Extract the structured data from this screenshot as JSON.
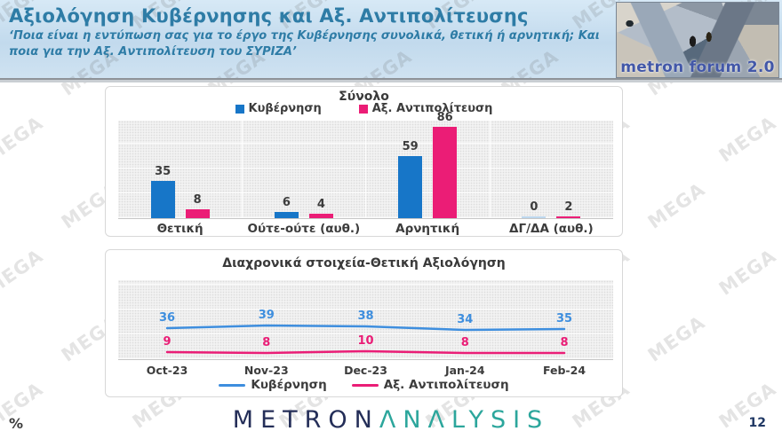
{
  "header": {
    "title": "Αξιολόγηση Κυβέρνησης και Αξ. Αντιπολίτευσης",
    "subtitle": "‘Ποια είναι η εντύπωση σας για το έργο της Κυβέρνησης συνολικά, θετική ή αρνητική; Και ποια για την Αξ. Αντιπολίτευση του ΣΥΡΙΖΑ’",
    "logo_text": "metron forum 2.0"
  },
  "watermark": {
    "text": "MEGA"
  },
  "chart_data": [
    {
      "type": "bar",
      "title": "Σύνολο",
      "categories": [
        "Θετική",
        "Ούτε-ούτε (αυθ.)",
        "Αρνητική",
        "ΔΓ/ΔΑ (αυθ.)"
      ],
      "series": [
        {
          "name": "Κυβέρνηση",
          "color": "#1776c8",
          "values": [
            35,
            6,
            59,
            0
          ]
        },
        {
          "name": "Αξ. Αντιπολίτευση",
          "color": "#eb1d76",
          "values": [
            8,
            4,
            86,
            2
          ]
        }
      ],
      "ylim": [
        0,
        93
      ],
      "legend_position": "top",
      "grid": "dotted",
      "zero_bar_color": "#bdd7ee",
      "label_color": "#3c3c3c"
    },
    {
      "type": "line",
      "title": "Διαχρονικά στοιχεία-Θετική Αξιολόγηση",
      "x": [
        "Oct-23",
        "Nov-23",
        "Dec-23",
        "Jan-24",
        "Feb-24"
      ],
      "series": [
        {
          "name": "Κυβέρνηση",
          "color": "#3e8ede",
          "values": [
            36,
            39,
            38,
            34,
            35
          ]
        },
        {
          "name": "Αξ. Αντιπολίτευση",
          "color": "#ea1d76",
          "values": [
            9,
            8,
            10,
            8,
            8
          ]
        }
      ],
      "ylim": [
        0,
        90
      ],
      "legend_position": "bottom",
      "grid": "dotted"
    }
  ],
  "footer": {
    "percent_label": "%",
    "brand_part1": "METRON",
    "brand_part2": "ΛNΛLYSIS",
    "page_number": "12"
  }
}
